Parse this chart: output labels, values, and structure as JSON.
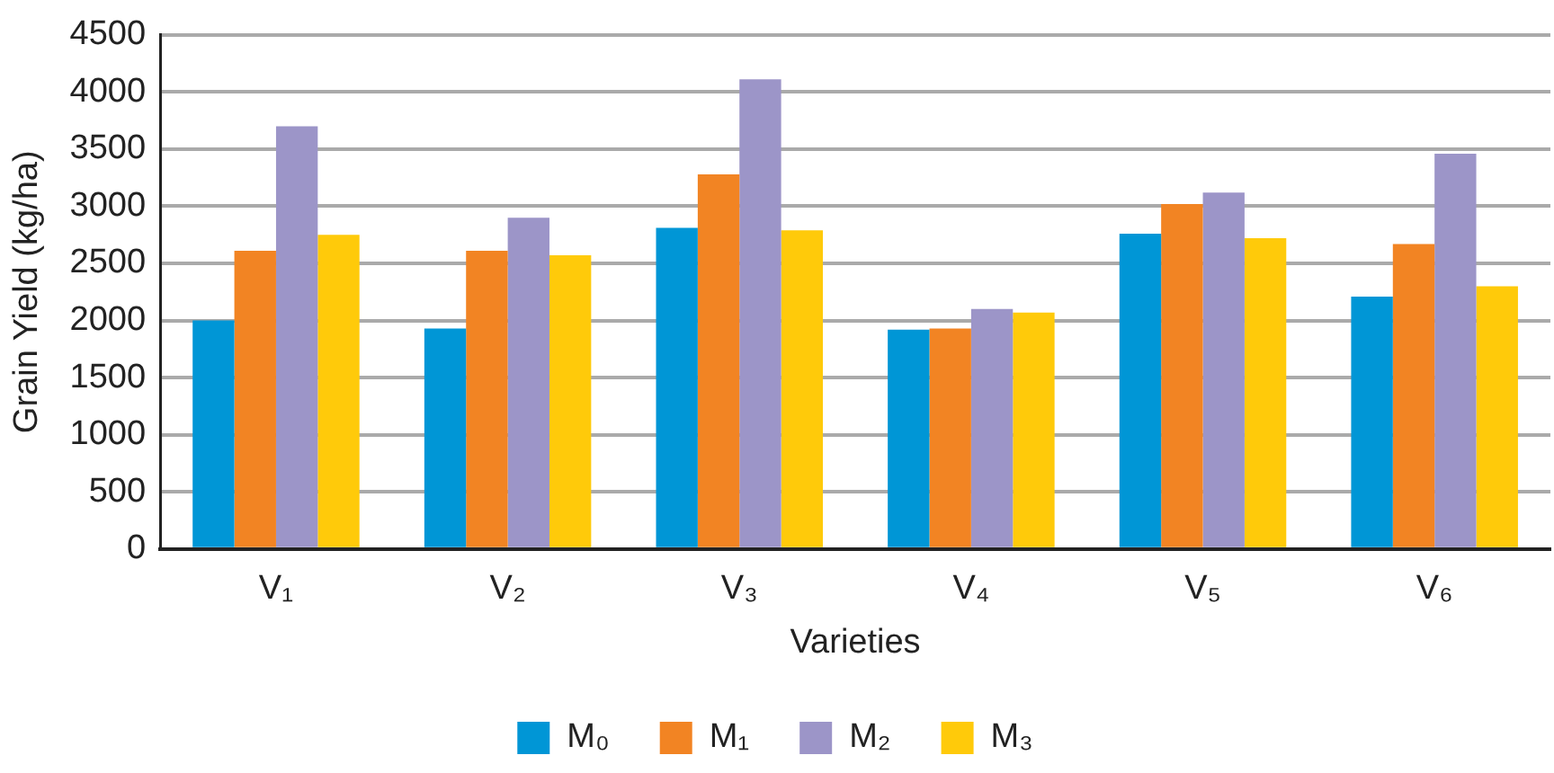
{
  "chart_data": {
    "type": "bar",
    "xlabel": "Varieties",
    "ylabel": "Grain Yield (kg/ha)",
    "categories": [
      "V₁",
      "V₂",
      "V₃",
      "V₄",
      "V₅",
      "V₆"
    ],
    "series": [
      {
        "name": "M₀",
        "color": "#0096d6",
        "values": [
          2000,
          1930,
          2810,
          1920,
          2760,
          2210
        ]
      },
      {
        "name": "M₁",
        "color": "#f28423",
        "values": [
          2610,
          2610,
          3280,
          1930,
          3020,
          2670
        ]
      },
      {
        "name": "M₂",
        "color": "#9c95c8",
        "values": [
          3700,
          2900,
          4110,
          2100,
          3120,
          3460
        ]
      },
      {
        "name": "M₃",
        "color": "#ffca0a",
        "values": [
          2750,
          2570,
          2790,
          2070,
          2720,
          2300
        ]
      }
    ],
    "ylim": [
      0,
      4500
    ],
    "yticks": [
      0,
      500,
      1000,
      1500,
      2000,
      2500,
      3000,
      3500,
      4000,
      4500
    ],
    "grid": "y",
    "legend": "bottom"
  }
}
